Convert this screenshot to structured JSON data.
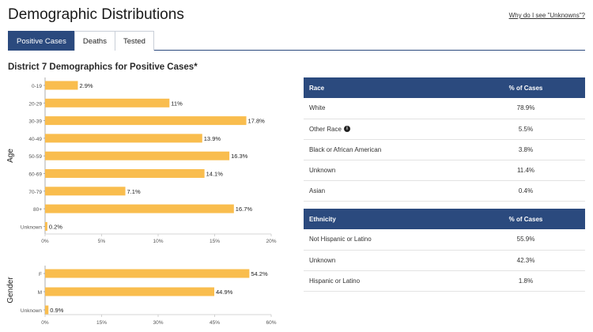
{
  "header": {
    "title": "Demographic Distributions",
    "help_link": "Why do I see \"Unknowns\"?"
  },
  "tabs": [
    {
      "label": "Positive Cases",
      "active": true
    },
    {
      "label": "Deaths",
      "active": false
    },
    {
      "label": "Tested",
      "active": false
    }
  ],
  "section": {
    "title": "District 7 Demographics for Positive Cases*"
  },
  "colors": {
    "bar": "#f9bd4e",
    "header_bg": "#2b4a7e",
    "header_text": "#ffffff"
  },
  "chart_data": [
    {
      "type": "bar",
      "orientation": "horizontal",
      "ylabel": "Age",
      "categories": [
        "0-19",
        "20-29",
        "30-39",
        "40-49",
        "50-59",
        "60-69",
        "70-79",
        "80+",
        "Unknown"
      ],
      "values": [
        2.9,
        11,
        17.8,
        13.9,
        16.3,
        14.1,
        7.1,
        16.7,
        0.2
      ],
      "value_labels": [
        "2.9%",
        "11%",
        "17.8%",
        "13.9%",
        "16.3%",
        "14.1%",
        "7.1%",
        "16.7%",
        "0.2%"
      ],
      "xlim": [
        0,
        20
      ],
      "xticks": [
        0,
        5,
        10,
        15,
        20
      ],
      "xtick_labels": [
        "0%",
        "5%",
        "10%",
        "15%",
        "20%"
      ],
      "grid": false
    },
    {
      "type": "bar",
      "orientation": "horizontal",
      "ylabel": "Gender",
      "categories": [
        "F",
        "M",
        "Unknown"
      ],
      "values": [
        54.2,
        44.9,
        0.9
      ],
      "value_labels": [
        "54.2%",
        "44.9%",
        "0.9%"
      ],
      "xlim": [
        0,
        60
      ],
      "xticks": [
        0,
        15,
        30,
        45,
        60
      ],
      "xtick_labels": [
        "0%",
        "15%",
        "30%",
        "45%",
        "60%"
      ],
      "grid": false
    }
  ],
  "race_table": {
    "header": [
      "Race",
      "% of Cases"
    ],
    "rows": [
      {
        "label": "White",
        "value": "78.9%"
      },
      {
        "label": "Other Race",
        "value": "5.5%",
        "info": true
      },
      {
        "label": "Black or African American",
        "value": "3.8%"
      },
      {
        "label": "Unknown",
        "value": "11.4%"
      },
      {
        "label": "Asian",
        "value": "0.4%"
      }
    ]
  },
  "ethnicity_table": {
    "header": [
      "Ethnicity",
      "% of Cases"
    ],
    "rows": [
      {
        "label": "Not Hispanic or Latino",
        "value": "55.9%"
      },
      {
        "label": "Unknown",
        "value": "42.3%"
      },
      {
        "label": "Hispanic or Latino",
        "value": "1.8%"
      }
    ]
  },
  "icons": {
    "info": "info-icon"
  }
}
